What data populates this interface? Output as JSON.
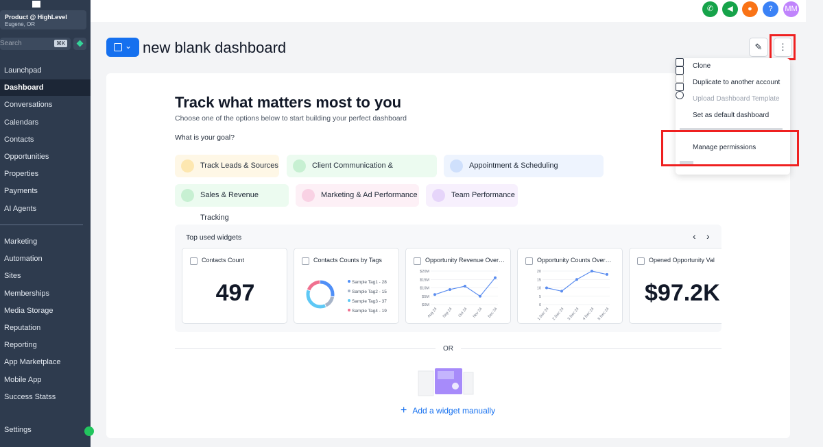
{
  "sidebar": {
    "account_name": "Product @ HighLevel",
    "account_location": "Eugene, OR",
    "search_placeholder": "Search",
    "search_shortcut": "⌘K",
    "menu_primary": [
      "Launchpad",
      "Dashboard",
      "Conversations",
      "Calendars",
      "Contacts",
      "Opportunities",
      "Properties",
      "Payments",
      "AI Agents"
    ],
    "menu_secondary": [
      "Marketing",
      "Automation",
      "Sites",
      "Memberships",
      "Media Storage",
      "Reputation",
      "Reporting",
      "App Marketplace",
      "Mobile App",
      "Success Statss"
    ],
    "footer": "Settings"
  },
  "topbar": {
    "avatar": "MM"
  },
  "header": {
    "title": "new blank dashboard"
  },
  "menu": {
    "items": [
      "Clone",
      "Duplicate to another account",
      "Upload Dashboard Template",
      "Set as default dashboard",
      "Manage permissions"
    ]
  },
  "onboarding": {
    "title": "Track what matters most to you",
    "subtitle": "Choose one of the options below to start building your perfect dashboard",
    "goal_prompt": "What is your goal?",
    "goals": [
      "Track Leads & Sources",
      "Client Communication & Engagement",
      "Appointment & Scheduling Management",
      "Sales & Revenue Tracking",
      "Marketing & Ad Performance",
      "Team Performance"
    ]
  },
  "widgets": {
    "title": "Top used widgets",
    "cards": [
      {
        "title": "Contacts Count",
        "value": 497
      },
      {
        "title": "Contacts Counts by Tags",
        "type": "pie",
        "categories": [
          "Sample Tag1 - 28",
          "Sample Tag2 - 15",
          "Sample Tag3 - 37",
          "Sample Tag4 - 19"
        ],
        "values": [
          28,
          15,
          37,
          19
        ],
        "colors": [
          "#4f8ff7",
          "#a7b4c8",
          "#5ec8f5",
          "#f0708f"
        ]
      },
      {
        "title": "Opportunity Revenue Over…",
        "type": "line",
        "color": "#5b8def",
        "categories": [
          "Aug 24",
          "Sep 24",
          "Oct 24",
          "Nov 24",
          "Dec 24"
        ],
        "values": [
          6,
          9,
          11,
          5,
          16
        ],
        "ylim": [
          0,
          20
        ],
        "yticks": [
          {
            "value": 0,
            "label": "$0M"
          },
          {
            "value": 5,
            "label": "$5M"
          },
          {
            "value": 10,
            "label": "$10M"
          },
          {
            "value": 15,
            "label": "$15M"
          },
          {
            "value": 20,
            "label": "$20M"
          }
        ]
      },
      {
        "title": "Opportunity Counts Over…",
        "type": "line",
        "color": "#5b8def",
        "categories": [
          "1 Dec 24",
          "2 Dec 24",
          "3 Dec 24",
          "4 Dec 24",
          "5 Dec 24"
        ],
        "values": [
          10,
          8,
          15,
          20,
          18
        ],
        "ylim": [
          0,
          20
        ],
        "yticks": [
          0,
          5,
          10,
          15,
          20
        ]
      },
      {
        "title": "Opened Opportunity Val",
        "value": "$97.2K"
      }
    ]
  },
  "divider": "OR",
  "add_widget": "Add a widget manually"
}
